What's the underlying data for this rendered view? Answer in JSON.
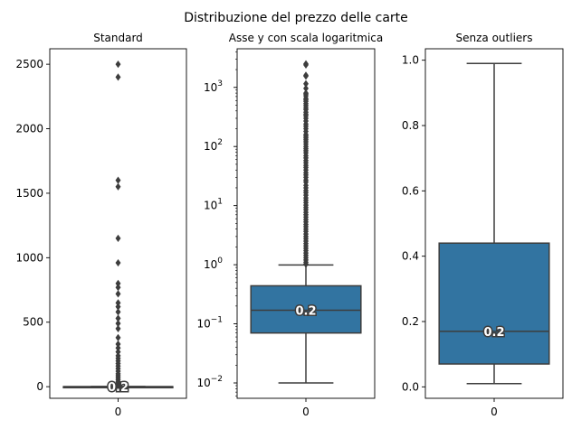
{
  "title": "Distribuzione del prezzo delle carte",
  "colors": {
    "box_fill": "#3274a1",
    "line": "#3d3d3d",
    "axes": "#000000"
  },
  "chart_data": [
    {
      "type": "box",
      "title": "Standard",
      "categories": [
        "0"
      ],
      "yscale": "linear",
      "ylim": [
        -90,
        2620
      ],
      "yticks": [
        0,
        500,
        1000,
        1500,
        2000,
        2500
      ],
      "ytick_labels": [
        "0",
        "500",
        "1000",
        "1500",
        "2000",
        "2500"
      ],
      "box": {
        "q1": 0.07,
        "median": 0.17,
        "q3": 0.44,
        "whisker_low": 0.01,
        "whisker_high": 0.99
      },
      "outliers": [
        2500,
        2400,
        1600,
        1550,
        1150,
        960,
        800,
        770,
        720,
        650,
        620,
        580,
        530,
        490,
        450,
        380,
        330,
        300,
        270,
        240,
        220,
        200,
        180,
        160,
        140,
        120,
        100,
        85,
        70,
        55,
        40,
        30,
        20,
        12,
        6,
        3,
        1.5
      ],
      "median_label": "0.2"
    },
    {
      "type": "box",
      "title": "Asse y con scala logaritmica",
      "categories": [
        "0"
      ],
      "yscale": "log",
      "ylim": [
        0.0055,
        4500
      ],
      "yticks": [
        0.01,
        0.1,
        1,
        10,
        100,
        1000
      ],
      "ytick_labels": [
        "10",
        "10",
        "10",
        "10",
        "10",
        "10"
      ],
      "ytick_exponents": [
        "−2",
        "−1",
        "0",
        "1",
        "2",
        "3"
      ],
      "box": {
        "q1": 0.07,
        "median": 0.17,
        "q3": 0.44,
        "whisker_low": 0.01,
        "whisker_high": 0.99
      },
      "outliers": [
        2500,
        2400,
        1600,
        1550,
        1150,
        960,
        800,
        770,
        720,
        650,
        620,
        580,
        530,
        490,
        450,
        420,
        380,
        350,
        330,
        300,
        270,
        240,
        220,
        200,
        180,
        160,
        150,
        140,
        130,
        120,
        110,
        100,
        92,
        85,
        78,
        70,
        64,
        58,
        53,
        48,
        44,
        40,
        36,
        33,
        30,
        27,
        25,
        22,
        20,
        18,
        16.5,
        15,
        13.5,
        12.3,
        11.2,
        10.2,
        9.3,
        8.5,
        7.7,
        7,
        6.4,
        5.8,
        5.3,
        4.8,
        4.4,
        4,
        3.65,
        3.3,
        3,
        2.75,
        2.5,
        2.28,
        2.08,
        1.9,
        1.73,
        1.58,
        1.44,
        1.31,
        1.2,
        1.1,
        1.02
      ],
      "median_label": "0.2"
    },
    {
      "type": "box",
      "title": "Senza outliers",
      "categories": [
        "0"
      ],
      "yscale": "linear",
      "ylim": [
        -0.035,
        1.035
      ],
      "yticks": [
        0.0,
        0.2,
        0.4,
        0.6,
        0.8,
        1.0
      ],
      "ytick_labels": [
        "0.0",
        "0.2",
        "0.4",
        "0.6",
        "0.8",
        "1.0"
      ],
      "box": {
        "q1": 0.07,
        "median": 0.17,
        "q3": 0.44,
        "whisker_low": 0.01,
        "whisker_high": 0.99
      },
      "outliers": [],
      "median_label": "0.2"
    }
  ]
}
